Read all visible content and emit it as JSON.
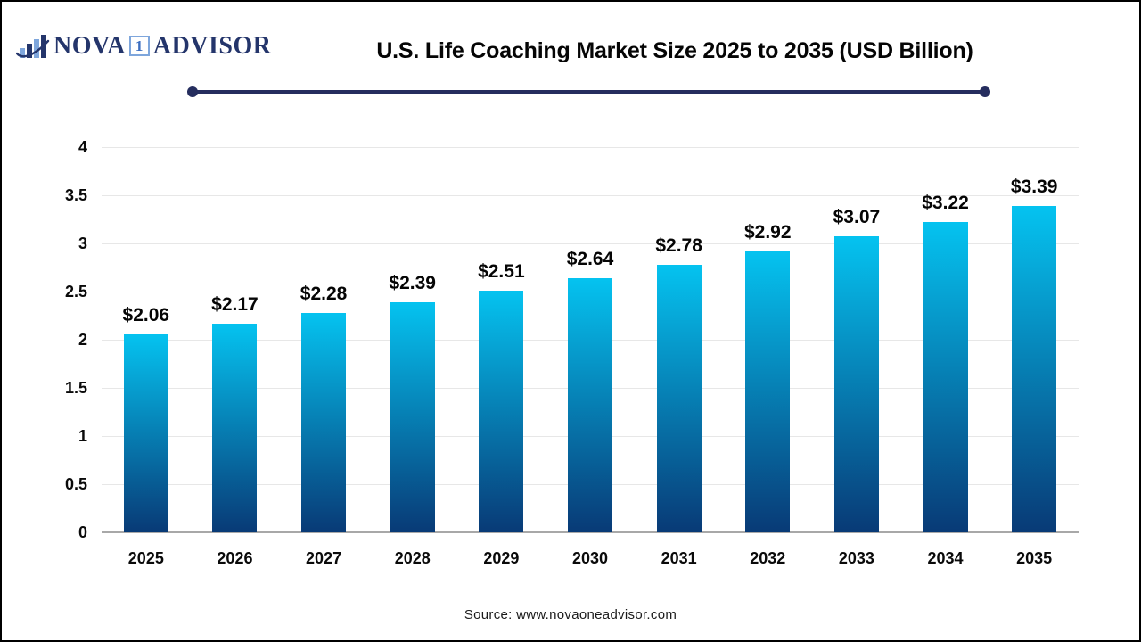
{
  "logo": {
    "name_part1": "NOVA",
    "badge": "1",
    "name_part2": "ADVISOR",
    "navy": "#24356B",
    "light_blue": "#7EA6DC"
  },
  "header": {
    "title": "U.S. Life Coaching Market Size 2025 to 2035 (USD Billion)",
    "underline_color": "#252D5E"
  },
  "chart_data": {
    "type": "bar",
    "title": "U.S. Life Coaching Market Size 2025 to 2035 (USD Billion)",
    "categories": [
      "2025",
      "2026",
      "2027",
      "2028",
      "2029",
      "2030",
      "2031",
      "2032",
      "2033",
      "2034",
      "2035"
    ],
    "values": [
      2.06,
      2.17,
      2.28,
      2.39,
      2.51,
      2.64,
      2.78,
      2.92,
      3.07,
      3.22,
      3.39
    ],
    "value_labels": [
      "$2.06",
      "$2.17",
      "$2.28",
      "$2.39",
      "$2.51",
      "$2.64",
      "$2.78",
      "$2.92",
      "$3.07",
      "$3.22",
      "$3.39"
    ],
    "xlabel": "",
    "ylabel": "",
    "ylim": [
      0,
      4
    ],
    "yticks": [
      0,
      0.5,
      1,
      1.5,
      2,
      2.5,
      3,
      3.5,
      4
    ],
    "ytick_labels": [
      "0",
      "0.5",
      "1",
      "1.5",
      "2",
      "2.5",
      "3",
      "3.5",
      "4"
    ],
    "grid": "horizontal",
    "legend": "none",
    "bar_gradient_top": "#05C3F0",
    "bar_gradient_bottom": "#083A76",
    "gridline_color": "#E7E7E7",
    "axis_line_color": "#A8A8A8",
    "label_color": "#050505"
  },
  "footer": {
    "source": "Source: www.novaoneadvisor.com"
  }
}
